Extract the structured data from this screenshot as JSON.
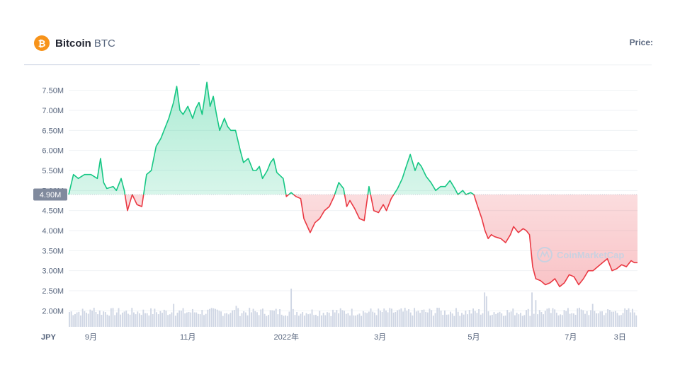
{
  "header": {
    "coin_icon": "bitcoin-icon",
    "coin_icon_glyph": "₿",
    "coin_name": "Bitcoin",
    "coin_symbol": "BTC",
    "price_label": "Price:"
  },
  "watermark": {
    "icon": "coinmarketcap-logo",
    "text": "CoinMarketCap"
  },
  "colors": {
    "up": "#16c784",
    "down": "#ea3943",
    "volume": "#cfd6e4",
    "grid": "#eff2f5",
    "label_bg": "#808a9d"
  },
  "chart_data": {
    "type": "line",
    "currency": "JPY",
    "current_value_label": "4.90M",
    "baseline": 4.9,
    "ylim": [
      1.6,
      7.9
    ],
    "y_ticks": [
      {
        "value": 2.0,
        "label": "2.00M"
      },
      {
        "value": 2.5,
        "label": "2.50M"
      },
      {
        "value": 3.0,
        "label": "3.00M"
      },
      {
        "value": 3.5,
        "label": "3.50M"
      },
      {
        "value": 4.0,
        "label": "4.00M"
      },
      {
        "value": 4.5,
        "label": "4.50M"
      },
      {
        "value": 5.0,
        "label": "5.00M"
      },
      {
        "value": 5.5,
        "label": "5.50M"
      },
      {
        "value": 6.0,
        "label": "6.00M"
      },
      {
        "value": 6.5,
        "label": "6.50M"
      },
      {
        "value": 7.0,
        "label": "7.00M"
      },
      {
        "value": 7.5,
        "label": "7.50M"
      }
    ],
    "x_ticks": [
      {
        "x": 14,
        "label": "9月"
      },
      {
        "x": 75,
        "label": "11月"
      },
      {
        "x": 137,
        "label": "2022年"
      },
      {
        "x": 196,
        "label": "3月"
      },
      {
        "x": 255,
        "label": "5月"
      },
      {
        "x": 316,
        "label": "7月"
      },
      {
        "x": 347,
        "label": "3日"
      }
    ],
    "x_range": [
      0,
      358
    ],
    "series": [
      {
        "x": [
          0,
          3,
          6,
          10,
          14,
          18,
          20,
          22,
          24,
          28,
          30,
          33,
          35,
          37,
          40,
          43,
          46,
          49,
          52,
          55,
          58,
          61,
          63,
          66,
          68,
          70,
          72,
          75,
          78,
          80,
          82,
          84,
          87,
          89,
          91,
          93,
          95,
          98,
          100,
          102,
          105,
          108,
          110,
          113,
          116,
          118,
          120,
          122,
          125,
          127,
          129,
          131,
          135,
          137,
          140,
          143,
          146,
          148,
          152,
          155,
          158,
          161,
          164,
          167,
          170,
          173,
          175,
          177,
          180,
          183,
          186,
          189,
          192,
          195,
          198,
          200,
          203,
          207,
          210,
          212,
          215,
          218,
          220,
          222,
          225,
          228,
          231,
          234,
          237,
          240,
          243,
          245,
          248,
          250,
          253,
          255,
          257,
          260,
          262,
          264,
          266,
          268,
          272,
          275,
          278,
          280,
          283,
          286,
          288,
          290,
          292,
          294,
          297,
          300,
          303,
          306,
          309,
          312,
          315,
          318,
          321,
          324,
          327,
          330,
          333,
          336,
          339,
          342,
          345,
          348,
          351,
          354,
          356,
          358
        ],
        "values": [
          4.9,
          5.4,
          5.3,
          5.4,
          5.4,
          5.3,
          5.8,
          5.2,
          5.05,
          5.1,
          5.0,
          5.3,
          5.0,
          4.5,
          4.9,
          4.65,
          4.6,
          5.4,
          5.5,
          6.1,
          6.3,
          6.6,
          6.8,
          7.2,
          7.6,
          7.0,
          6.9,
          7.1,
          6.8,
          7.05,
          7.2,
          6.9,
          7.7,
          7.1,
          7.35,
          6.9,
          6.5,
          6.8,
          6.6,
          6.5,
          6.5,
          6.0,
          5.7,
          5.8,
          5.5,
          5.5,
          5.6,
          5.3,
          5.5,
          5.7,
          5.8,
          5.45,
          5.3,
          4.85,
          4.95,
          4.85,
          4.8,
          4.3,
          3.95,
          4.2,
          4.3,
          4.5,
          4.6,
          4.85,
          5.2,
          5.05,
          4.6,
          4.75,
          4.55,
          4.3,
          4.25,
          5.1,
          4.5,
          4.45,
          4.65,
          4.5,
          4.8,
          5.05,
          5.3,
          5.55,
          5.9,
          5.5,
          5.7,
          5.6,
          5.35,
          5.2,
          5.0,
          5.1,
          5.1,
          5.25,
          5.05,
          4.9,
          5.0,
          4.9,
          4.95,
          4.9,
          4.65,
          4.3,
          4.0,
          3.8,
          3.9,
          3.85,
          3.8,
          3.7,
          3.9,
          4.1,
          3.95,
          4.05,
          4.0,
          3.9,
          3.1,
          2.8,
          2.75,
          2.65,
          2.7,
          2.8,
          2.6,
          2.7,
          2.9,
          2.85,
          2.65,
          2.8,
          3.0,
          3.0,
          3.1,
          3.2,
          3.3,
          3.0,
          3.05,
          3.15,
          3.1,
          3.25,
          3.2,
          3.2
        ]
      }
    ],
    "volume": {
      "series_name": "",
      "count": 300,
      "ylim": [
        0,
        1
      ],
      "spikes": [
        {
          "x": 16,
          "value": 0.5
        },
        {
          "x": 66,
          "value": 0.6
        },
        {
          "x": 93,
          "value": 0.45
        },
        {
          "x": 105,
          "value": 0.55
        },
        {
          "x": 140,
          "value": 1.0
        },
        {
          "x": 232,
          "value": 0.5
        },
        {
          "x": 262,
          "value": 0.9
        },
        {
          "x": 264,
          "value": 0.8
        },
        {
          "x": 292,
          "value": 0.9
        },
        {
          "x": 294,
          "value": 0.7
        },
        {
          "x": 322,
          "value": 0.5
        },
        {
          "x": 330,
          "value": 0.6
        }
      ]
    }
  }
}
